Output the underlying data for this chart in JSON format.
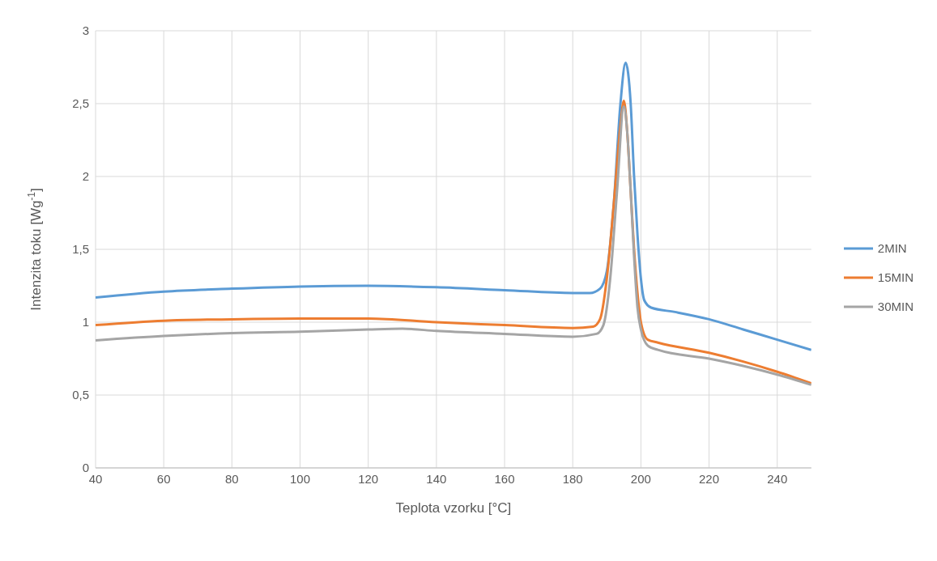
{
  "chart_data": {
    "type": "line",
    "xlabel": "Teplota vzorku [°C]",
    "ylabel": "Intenzita toku [Wg$^{-1}$]",
    "xlim": [
      40,
      250
    ],
    "xticks": [
      40,
      60,
      80,
      100,
      120,
      140,
      160,
      180,
      200,
      220,
      240
    ],
    "ylim": [
      0,
      3
    ],
    "yticks": [
      0,
      {
        "value": 0.5,
        "label": "0,5"
      },
      1,
      {
        "value": 1.5,
        "label": "1,5"
      },
      2,
      {
        "value": 2.5,
        "label": "2,5"
      },
      3
    ],
    "grid": true,
    "legend": "right",
    "marker": "none",
    "line_style": "solid",
    "series": [
      {
        "name": "2MIN",
        "color": "#5b9bd5",
        "x": [
          40,
          60,
          80,
          100,
          120,
          140,
          160,
          180,
          185,
          188,
          190,
          192,
          194,
          195.5,
          197,
          198,
          199,
          200,
          201,
          203,
          210,
          220,
          230,
          240,
          250
        ],
        "values": [
          1.17,
          1.21,
          1.23,
          1.245,
          1.25,
          1.24,
          1.22,
          1.2,
          1.2,
          1.23,
          1.35,
          1.8,
          2.5,
          2.78,
          2.5,
          2.0,
          1.6,
          1.3,
          1.15,
          1.1,
          1.07,
          1.02,
          0.95,
          0.88,
          0.81
        ]
      },
      {
        "name": "15MIN",
        "color": "#ed7d31",
        "x": [
          40,
          60,
          80,
          100,
          120,
          140,
          160,
          180,
          186,
          188,
          190,
          192,
          194,
          195,
          196,
          197,
          198,
          199,
          200,
          202,
          205,
          220,
          230,
          240,
          250
        ],
        "values": [
          0.98,
          1.01,
          1.02,
          1.025,
          1.025,
          1.0,
          0.98,
          0.96,
          0.97,
          1.02,
          1.3,
          1.8,
          2.35,
          2.52,
          2.3,
          1.9,
          1.5,
          1.2,
          1.0,
          0.88,
          0.86,
          0.79,
          0.73,
          0.66,
          0.58
        ]
      },
      {
        "name": "30MIN",
        "color": "#a5a5a5",
        "x": [
          40,
          60,
          80,
          100,
          120,
          130,
          140,
          160,
          180,
          187,
          189,
          191,
          193,
          195,
          196,
          197,
          198,
          199,
          200,
          202,
          205,
          220,
          230,
          240,
          250
        ],
        "values": [
          0.875,
          0.905,
          0.925,
          0.935,
          0.95,
          0.955,
          0.94,
          0.92,
          0.9,
          0.92,
          0.98,
          1.3,
          1.9,
          2.48,
          2.3,
          1.9,
          1.45,
          1.1,
          0.95,
          0.84,
          0.81,
          0.75,
          0.7,
          0.64,
          0.57
        ]
      }
    ]
  }
}
